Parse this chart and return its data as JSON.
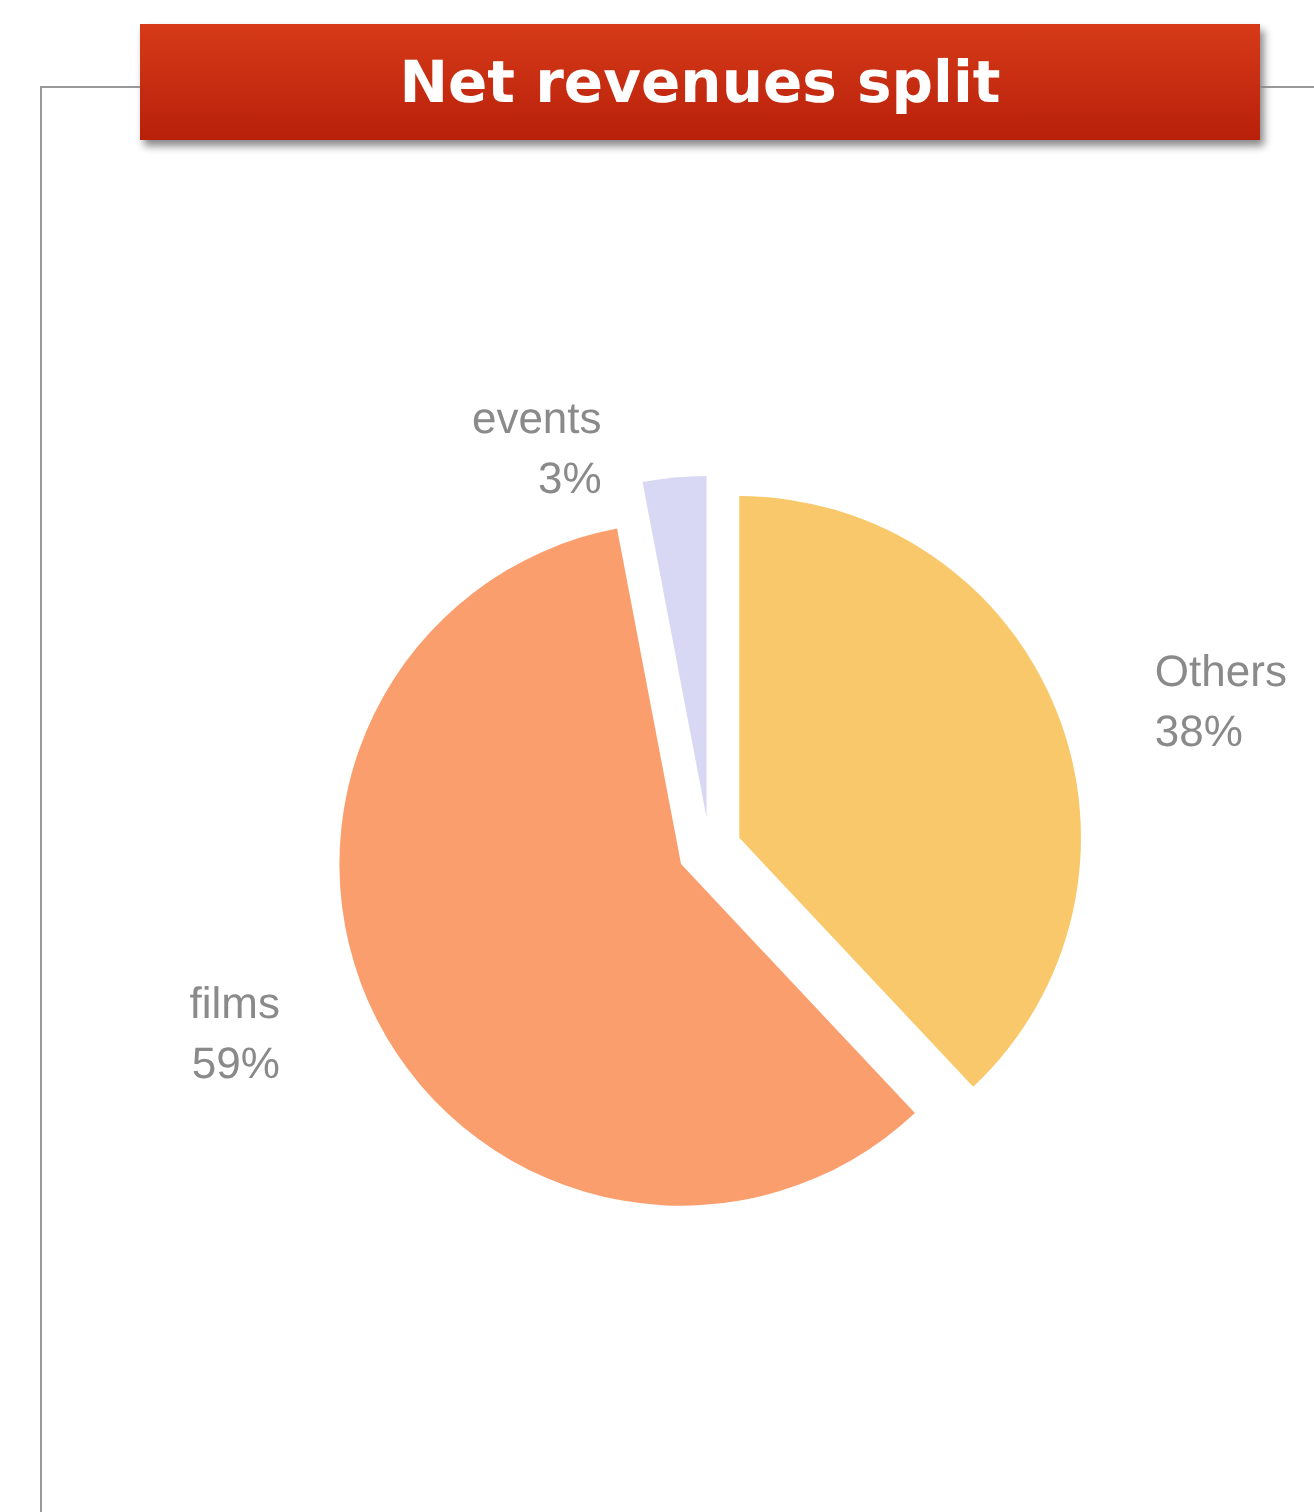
{
  "chart_data": {
    "type": "pie",
    "title": "Net revenues split",
    "categories": [
      "Others",
      "films",
      "events"
    ],
    "values": [
      38,
      59,
      3
    ],
    "value_labels": [
      "38%",
      "59%",
      "3%"
    ],
    "colors": [
      "#f8c86a",
      "#fb9e6e",
      "#d8d8f4"
    ],
    "legend": false
  }
}
